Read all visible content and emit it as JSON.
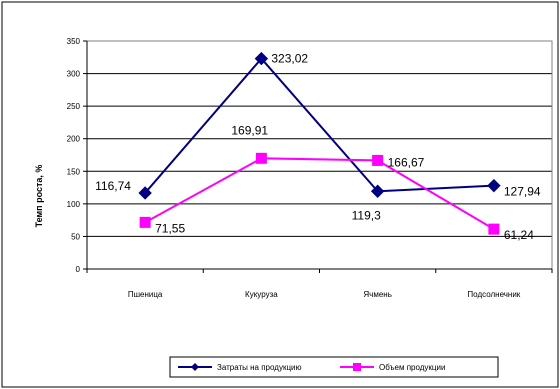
{
  "chart_data": {
    "type": "line",
    "categories": [
      "Пшеница",
      "Кукуруза",
      "Ячмень",
      "Подсолнечник"
    ],
    "ylabel": "Темп роста, %",
    "xlabel": "",
    "title": "",
    "ylim": [
      0,
      350
    ],
    "yticks": [
      0,
      50,
      100,
      150,
      200,
      250,
      300,
      350
    ],
    "grid": true,
    "legend_position": "bottom",
    "series": [
      {
        "name": "Затраты на продукцию",
        "values": [
          116.74,
          323.02,
          119.3,
          127.94
        ],
        "labels": [
          "116,74",
          "323,02",
          "119,3",
          "127,94"
        ],
        "color": "#000080",
        "marker": "diamond"
      },
      {
        "name": "Объем продукции",
        "values": [
          71.55,
          169.91,
          166.67,
          61.24
        ],
        "labels": [
          "71,55",
          "169,91",
          "166,67",
          "61,24"
        ],
        "color": "#ff00ff",
        "marker": "square"
      }
    ]
  }
}
